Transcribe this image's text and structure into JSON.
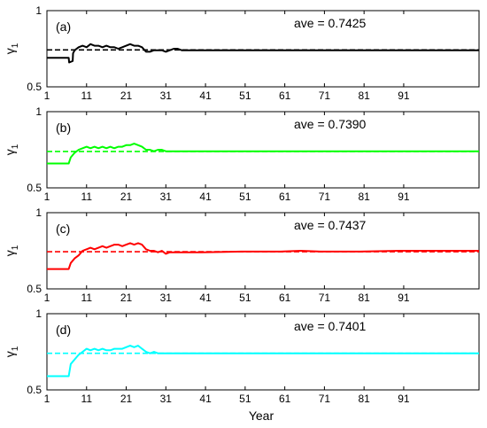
{
  "figure": {
    "xlabel": "Year"
  },
  "chart_data": [
    {
      "type": "line",
      "panel_label": "(a)",
      "annotation": "ave = 0.7425",
      "ylabel_base": "γ",
      "ylabel_sub": "1",
      "xlim": [
        1,
        110
      ],
      "ylim": [
        0.5,
        1.0
      ],
      "x_ticks": [
        1,
        11,
        21,
        31,
        41,
        51,
        61,
        71,
        81,
        91
      ],
      "y_ticks": [
        0.5,
        1
      ],
      "y_tick_labels": [
        "0.5",
        "1"
      ],
      "grid": false,
      "series": [
        {
          "color": "#000000",
          "style": "solid",
          "points": [
            [
              1,
              0.69
            ],
            [
              6.5,
              0.69
            ],
            [
              6.6,
              0.66
            ],
            [
              7.5,
              0.67
            ],
            [
              7.6,
              0.72
            ],
            [
              8,
              0.74
            ],
            [
              9,
              0.76
            ],
            [
              10,
              0.77
            ],
            [
              11,
              0.76
            ],
            [
              12,
              0.78
            ],
            [
              13,
              0.77
            ],
            [
              14,
              0.77
            ],
            [
              15,
              0.76
            ],
            [
              16,
              0.77
            ],
            [
              17,
              0.76
            ],
            [
              18,
              0.76
            ],
            [
              19,
              0.75
            ],
            [
              20,
              0.76
            ],
            [
              21,
              0.77
            ],
            [
              22,
              0.78
            ],
            [
              23,
              0.77
            ],
            [
              24,
              0.77
            ],
            [
              25,
              0.76
            ],
            [
              26,
              0.73
            ],
            [
              27,
              0.73
            ],
            [
              28,
              0.74
            ],
            [
              29,
              0.74
            ],
            [
              30,
              0.74
            ],
            [
              31,
              0.73
            ],
            [
              32,
              0.74
            ],
            [
              33,
              0.75
            ],
            [
              34,
              0.75
            ],
            [
              35,
              0.74
            ],
            [
              36,
              0.74
            ],
            [
              38,
              0.74
            ],
            [
              40,
              0.74
            ],
            [
              45,
              0.74
            ],
            [
              110,
              0.74
            ]
          ]
        },
        {
          "color": "#000000",
          "style": "dashed",
          "points": [
            [
              1,
              0.7425
            ],
            [
              110,
              0.7425
            ]
          ]
        }
      ]
    },
    {
      "type": "line",
      "panel_label": "(b)",
      "annotation": "ave = 0.7390",
      "ylabel_base": "γ",
      "ylabel_sub": "1",
      "xlim": [
        1,
        110
      ],
      "ylim": [
        0.5,
        1.0
      ],
      "x_ticks": [
        1,
        11,
        21,
        31,
        41,
        51,
        61,
        71,
        81,
        91
      ],
      "y_ticks": [
        0.5,
        1
      ],
      "y_tick_labels": [
        "0.5",
        "1"
      ],
      "grid": false,
      "series": [
        {
          "color": "#00ff00",
          "style": "solid",
          "points": [
            [
              1,
              0.66
            ],
            [
              6.5,
              0.66
            ],
            [
              7,
              0.7
            ],
            [
              8,
              0.73
            ],
            [
              9,
              0.75
            ],
            [
              10,
              0.76
            ],
            [
              11,
              0.77
            ],
            [
              12,
              0.76
            ],
            [
              13,
              0.77
            ],
            [
              14,
              0.76
            ],
            [
              15,
              0.77
            ],
            [
              16,
              0.76
            ],
            [
              17,
              0.77
            ],
            [
              18,
              0.76
            ],
            [
              19,
              0.77
            ],
            [
              20,
              0.77
            ],
            [
              21,
              0.78
            ],
            [
              22,
              0.78
            ],
            [
              23,
              0.79
            ],
            [
              24,
              0.78
            ],
            [
              25,
              0.77
            ],
            [
              26,
              0.75
            ],
            [
              27,
              0.75
            ],
            [
              28,
              0.74
            ],
            [
              29,
              0.75
            ],
            [
              30,
              0.75
            ],
            [
              31,
              0.74
            ],
            [
              32,
              0.74
            ],
            [
              33,
              0.74
            ],
            [
              36,
              0.74
            ],
            [
              40,
              0.74
            ],
            [
              110,
              0.74
            ]
          ]
        },
        {
          "color": "#00ff00",
          "style": "dashed",
          "points": [
            [
              1,
              0.739
            ],
            [
              110,
              0.739
            ]
          ]
        }
      ]
    },
    {
      "type": "line",
      "panel_label": "(c)",
      "annotation": "ave = 0.7437",
      "ylabel_base": "γ",
      "ylabel_sub": "1",
      "xlim": [
        1,
        110
      ],
      "ylim": [
        0.5,
        1.0
      ],
      "x_ticks": [
        1,
        11,
        21,
        31,
        41,
        51,
        61,
        71,
        81,
        91
      ],
      "y_ticks": [
        0.5,
        1
      ],
      "y_tick_labels": [
        "0.5",
        "1"
      ],
      "grid": false,
      "series": [
        {
          "color": "#ff0000",
          "style": "solid",
          "points": [
            [
              1,
              0.63
            ],
            [
              6.5,
              0.63
            ],
            [
              7,
              0.67
            ],
            [
              8,
              0.7
            ],
            [
              9,
              0.72
            ],
            [
              10,
              0.75
            ],
            [
              11,
              0.76
            ],
            [
              12,
              0.77
            ],
            [
              13,
              0.76
            ],
            [
              14,
              0.77
            ],
            [
              15,
              0.78
            ],
            [
              16,
              0.77
            ],
            [
              17,
              0.78
            ],
            [
              18,
              0.79
            ],
            [
              19,
              0.79
            ],
            [
              20,
              0.78
            ],
            [
              21,
              0.79
            ],
            [
              22,
              0.8
            ],
            [
              23,
              0.79
            ],
            [
              24,
              0.8
            ],
            [
              25,
              0.79
            ],
            [
              26,
              0.76
            ],
            [
              27,
              0.75
            ],
            [
              28,
              0.75
            ],
            [
              29,
              0.74
            ],
            [
              30,
              0.75
            ],
            [
              31,
              0.73
            ],
            [
              32,
              0.74
            ],
            [
              33,
              0.74
            ],
            [
              36,
              0.74
            ],
            [
              40,
              0.74
            ],
            [
              50,
              0.745
            ],
            [
              60,
              0.745
            ],
            [
              65,
              0.75
            ],
            [
              70,
              0.745
            ],
            [
              80,
              0.745
            ],
            [
              90,
              0.75
            ],
            [
              110,
              0.75
            ]
          ]
        },
        {
          "color": "#ff0000",
          "style": "dashed",
          "points": [
            [
              1,
              0.7437
            ],
            [
              110,
              0.7437
            ]
          ]
        }
      ]
    },
    {
      "type": "line",
      "panel_label": "(d)",
      "annotation": "ave = 0.7401",
      "ylabel_base": "γ",
      "ylabel_sub": "1",
      "xlim": [
        1,
        110
      ],
      "ylim": [
        0.5,
        1.0
      ],
      "x_ticks": [
        1,
        11,
        21,
        31,
        41,
        51,
        61,
        71,
        81,
        91
      ],
      "y_ticks": [
        0.5,
        1
      ],
      "y_tick_labels": [
        "0.5",
        "1"
      ],
      "grid": false,
      "series": [
        {
          "color": "#00ffff",
          "style": "solid",
          "points": [
            [
              1,
              0.59
            ],
            [
              6.5,
              0.59
            ],
            [
              7,
              0.67
            ],
            [
              8,
              0.7
            ],
            [
              9,
              0.73
            ],
            [
              10,
              0.75
            ],
            [
              11,
              0.77
            ],
            [
              12,
              0.76
            ],
            [
              13,
              0.77
            ],
            [
              14,
              0.76
            ],
            [
              15,
              0.77
            ],
            [
              16,
              0.76
            ],
            [
              17,
              0.76
            ],
            [
              18,
              0.77
            ],
            [
              19,
              0.77
            ],
            [
              20,
              0.77
            ],
            [
              21,
              0.78
            ],
            [
              22,
              0.79
            ],
            [
              23,
              0.78
            ],
            [
              24,
              0.79
            ],
            [
              25,
              0.77
            ],
            [
              26,
              0.75
            ],
            [
              27,
              0.74
            ],
            [
              28,
              0.75
            ],
            [
              29,
              0.74
            ],
            [
              30,
              0.74
            ],
            [
              31,
              0.74
            ],
            [
              33,
              0.74
            ],
            [
              36,
              0.74
            ],
            [
              40,
              0.74
            ],
            [
              110,
              0.74
            ]
          ]
        },
        {
          "color": "#00ffff",
          "style": "dashed",
          "points": [
            [
              1,
              0.7401
            ],
            [
              110,
              0.7401
            ]
          ]
        }
      ]
    }
  ]
}
